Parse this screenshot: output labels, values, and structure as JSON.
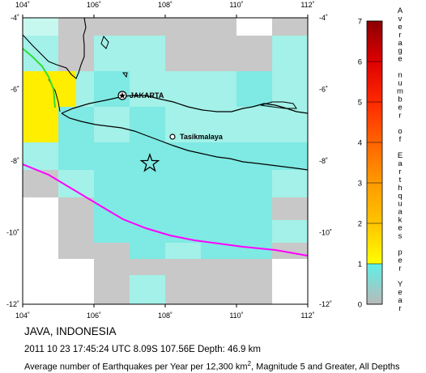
{
  "map": {
    "lon_range": [
      104,
      112
    ],
    "lat_range": [
      -12,
      -4
    ],
    "x_ticks": [
      {
        "value": 104,
        "label": "104˚"
      },
      {
        "value": 106,
        "label": "106˚"
      },
      {
        "value": 108,
        "label": "108˚"
      },
      {
        "value": 110,
        "label": "110˚"
      },
      {
        "value": 112,
        "label": "112˚"
      }
    ],
    "y_ticks": [
      {
        "value": -4,
        "label": "-4˚"
      },
      {
        "value": -6,
        "label": "-6˚"
      },
      {
        "value": -8,
        "label": "-8˚"
      },
      {
        "value": -10,
        "label": "-10˚"
      },
      {
        "value": -12,
        "label": "-12˚"
      }
    ],
    "cities": [
      {
        "name": "JAKARTA",
        "lon": 106.83,
        "lat": -6.2,
        "marker": "star-in-circle"
      },
      {
        "name": "Tasikmalaya",
        "lon": 108.2,
        "lat": -7.33,
        "marker": "circle"
      }
    ],
    "epicenter": {
      "lon": 107.56,
      "lat": -8.09,
      "marker": "star"
    },
    "colors": {
      "grid_gray": "#c8c8c8",
      "cell_light": "#c7f8f0",
      "cell_mid": "#a3f1e8",
      "cell_cyan": "#7fe9e3",
      "cell_yellow": "#ffee00",
      "coast": "#000000",
      "trench_line": "#ff00ff",
      "green_line": "#33dd33"
    }
  },
  "colorbar": {
    "range": [
      0,
      7
    ],
    "ticks": [
      "0",
      "1",
      "2",
      "3",
      "4",
      "5",
      "6",
      "7"
    ],
    "letters": [
      "A",
      "v",
      "e",
      "r",
      "a",
      "g",
      "e",
      "",
      "n",
      "u",
      "m",
      "b",
      "e",
      "r",
      "",
      "o",
      "f",
      "",
      "E",
      "a",
      "r",
      "t",
      "h",
      "q",
      "u",
      "a",
      "k",
      "e",
      "s",
      "",
      "p",
      "e",
      "r",
      "",
      "Y",
      "e",
      "a",
      "r"
    ],
    "stops": [
      {
        "from": 0,
        "to": 1,
        "colors": [
          "#b9b9b9",
          "#5ef0e6"
        ]
      },
      {
        "from": 1,
        "to": 2,
        "colors": [
          "#ffff00",
          "#ffc400"
        ]
      },
      {
        "from": 2,
        "to": 7,
        "colors": [
          "#ffc400",
          "#ff8a00",
          "#ff3a00",
          "#e60000",
          "#8a0000"
        ]
      }
    ]
  },
  "captions": {
    "title": "JAVA, INDONESIA",
    "event": "2011 10 23 17:45:24 UTC 8.09S 107.56E Depth: 46.9 km",
    "desc_pre": "Average number of Earthquakes per Year per 12,300 km",
    "desc_sup": "2",
    "desc_post": ", Magnitude 5 and Greater, All Depths"
  }
}
